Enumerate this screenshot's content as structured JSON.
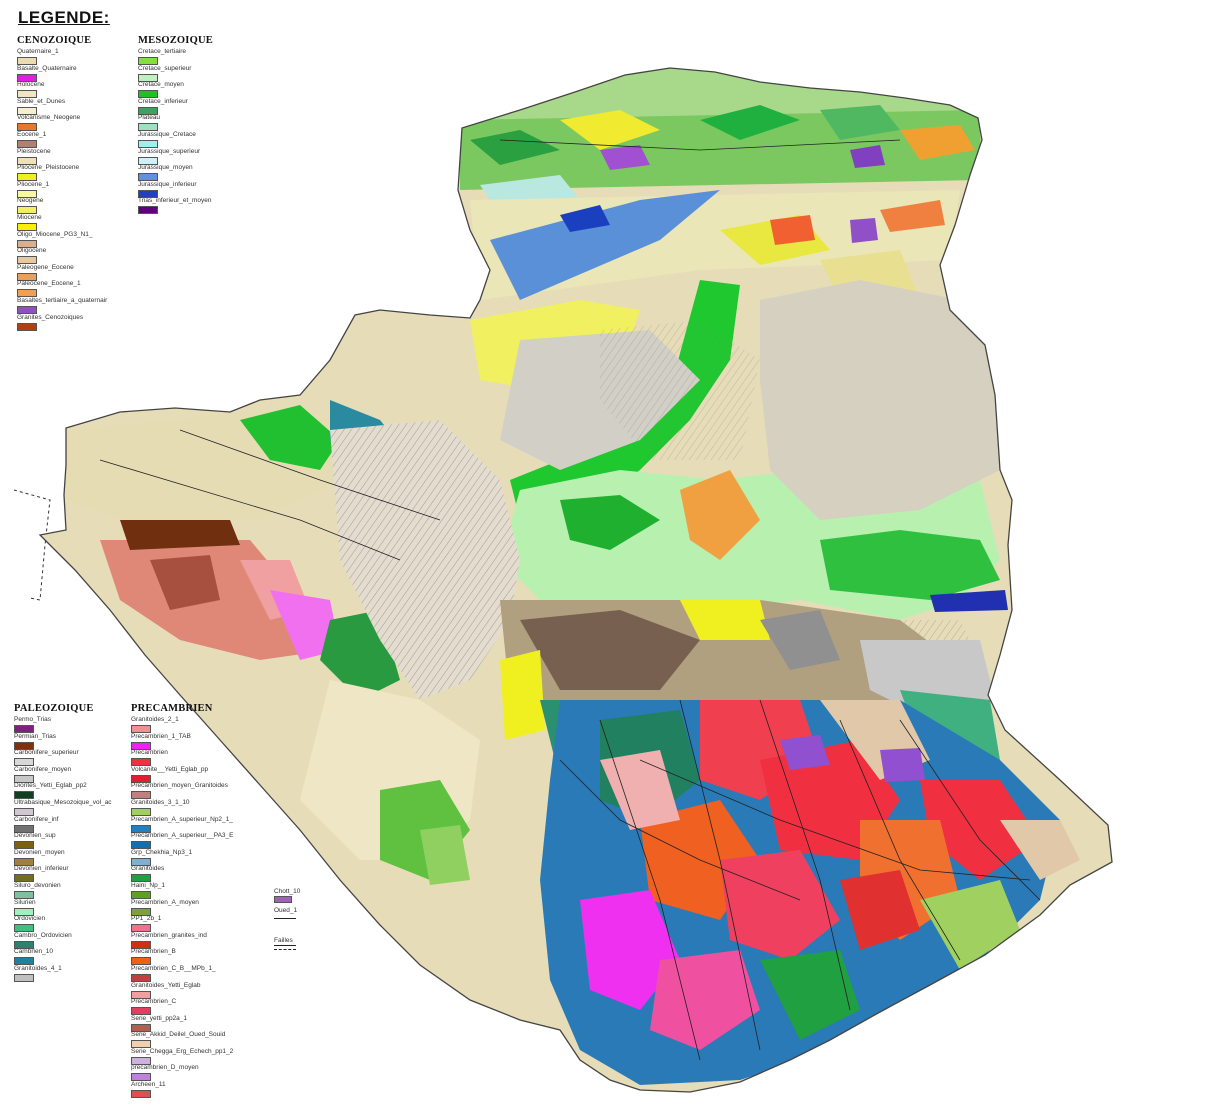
{
  "legend": {
    "title": "LEGENDE:",
    "groups": [
      {
        "name": "CENOZOIQUE",
        "items": [
          {
            "label": "Quaternaire_1",
            "color": "#e8dcb0"
          },
          {
            "label": "Basalte_Quaternaire",
            "color": "#e020e0"
          },
          {
            "label": "Holocene",
            "color": "#f0e6c4"
          },
          {
            "label": "Sable_et_Dunes",
            "color": "#f5eecf"
          },
          {
            "label": "Volcanisme_Neogene",
            "color": "#e87830"
          },
          {
            "label": "Eocene_1",
            "color": "#b08070"
          },
          {
            "label": "Pleistocene",
            "color": "#f0e0b8"
          },
          {
            "label": "Pliocene_Pleistocene",
            "color": "#f0f020"
          },
          {
            "label": "Pliocene_1",
            "color": "#f8f8a0"
          },
          {
            "label": "Neogene",
            "color": "#f0f060"
          },
          {
            "label": "Miocene",
            "color": "#f8f000"
          },
          {
            "label": "Oligo_Miocene_PG3_N1_",
            "color": "#d8b090"
          },
          {
            "label": "Oligocene",
            "color": "#e8c8a0"
          },
          {
            "label": "Paleogene_Eocene",
            "color": "#e8a060"
          },
          {
            "label": "Paleocene_Eocene_1",
            "color": "#f0a050"
          },
          {
            "label": "Basaltes_tertiaire_a_quaternair",
            "color": "#9050c0"
          },
          {
            "label": "Granites_Cenozoiques",
            "color": "#b04010"
          }
        ]
      },
      {
        "name": "MESOZOIQUE",
        "items": [
          {
            "label": "Cretace_tertiaire",
            "color": "#80e040"
          },
          {
            "label": "Cretace_superieur",
            "color": "#c0f0c0"
          },
          {
            "label": "Cretace_moyen",
            "color": "#20c020"
          },
          {
            "label": "Cretace_inferieur",
            "color": "#40a060"
          },
          {
            "label": "Plateau",
            "color": "#a0e0c0"
          },
          {
            "label": "Jurassique_Cretace",
            "color": "#a0f0f0"
          },
          {
            "label": "Jurassique_superieur",
            "color": "#d0f0f8"
          },
          {
            "label": "Jurassique_moyen",
            "color": "#6090e0"
          },
          {
            "label": "Jurassique_inferieur",
            "color": "#2040c0"
          },
          {
            "label": "Trias_inferieur_et_moyen",
            "color": "#600080"
          }
        ]
      },
      {
        "name": "PALEOZOIQUE",
        "items": [
          {
            "label": "Permo_Trias",
            "color": "#802080"
          },
          {
            "label": "Permian_Trias",
            "color": "#803010"
          },
          {
            "label": "Carbonifere_superieur",
            "color": "#d8d8d8"
          },
          {
            "label": "Carbonifere_moyen",
            "color": "#c8c8c8"
          },
          {
            "label": "Diorites_Yetti_Eglab_pp2",
            "color": "#104020"
          },
          {
            "label": "Ultrabasique_Mesozoique_vol_ac",
            "color": "#d0c8d0"
          },
          {
            "label": "Carbonifere_inf",
            "color": "#707070"
          },
          {
            "label": "Devonien_sup",
            "color": "#806010"
          },
          {
            "label": "Devonien_moyen",
            "color": "#a08040"
          },
          {
            "label": "Devonien_inferieur",
            "color": "#707020"
          },
          {
            "label": "Siluro_devonien",
            "color": "#80c0a0"
          },
          {
            "label": "Silurien",
            "color": "#a0f0c0"
          },
          {
            "label": "Ordovicien",
            "color": "#40c080"
          },
          {
            "label": "Cambro_Ordovicien",
            "color": "#308070"
          },
          {
            "label": "Cambrien_10",
            "color": "#2080a0"
          },
          {
            "label": "Granitoides_4_1",
            "color": "#c0c0c0"
          }
        ]
      },
      {
        "name": "PRECAMBRIEN",
        "items": [
          {
            "label": "Granitoides_2_1",
            "color": "#f09090"
          },
          {
            "label": "Precambrien_1_TAB",
            "color": "#f020f0"
          },
          {
            "label": "Precambrien",
            "color": "#f03040"
          },
          {
            "label": "Volcanite__Yetti_Eglab_pp",
            "color": "#e02030"
          },
          {
            "label": "Precambrien_moyen_Granitoides",
            "color": "#c08080"
          },
          {
            "label": "Granitoides_3_1_10",
            "color": "#a0d060"
          },
          {
            "label": "Precambrien_A_superieur_Np2_1_",
            "color": "#2080c0"
          },
          {
            "label": "Precambrien_A_superieur__PA3_E",
            "color": "#1070b0"
          },
          {
            "label": "Grp_Chekhia_Np3_1",
            "color": "#80b0d0"
          },
          {
            "label": "Granitoides",
            "color": "#20a040"
          },
          {
            "label": "Haini_Np_1",
            "color": "#60a020"
          },
          {
            "label": "Precambrien_A_moyen",
            "color": "#80a040"
          },
          {
            "label": "PP1_2b_1",
            "color": "#f07090"
          },
          {
            "label": "Precambrien_granites_ind",
            "color": "#d03010"
          },
          {
            "label": "Precambrien_B",
            "color": "#f06010"
          },
          {
            "label": "Precambrien_C_B__MPb_1_",
            "color": "#c04040"
          },
          {
            "label": "Granitoides_Yetti_Eglab",
            "color": "#f0a0a0"
          },
          {
            "label": "Precambrien_C",
            "color": "#e04060"
          },
          {
            "label": "Serie_yetti_pp2a_1",
            "color": "#b06050"
          },
          {
            "label": "Serie_Akkid_Deilel_Oued_Souid",
            "color": "#f0d0b0"
          },
          {
            "label": "Serie_Chegga_Erg_Echech_pp1_2",
            "color": "#d0b0e0"
          },
          {
            "label": "precambrien_D_moyen",
            "color": "#c080e0"
          },
          {
            "label": "Archeen_11",
            "color": "#e05050"
          }
        ]
      }
    ],
    "misc": {
      "chott_label": "Chott_10",
      "chott_color": "#a060c0",
      "oued_label": "Oued_1",
      "failles_label": "Failles"
    }
  }
}
